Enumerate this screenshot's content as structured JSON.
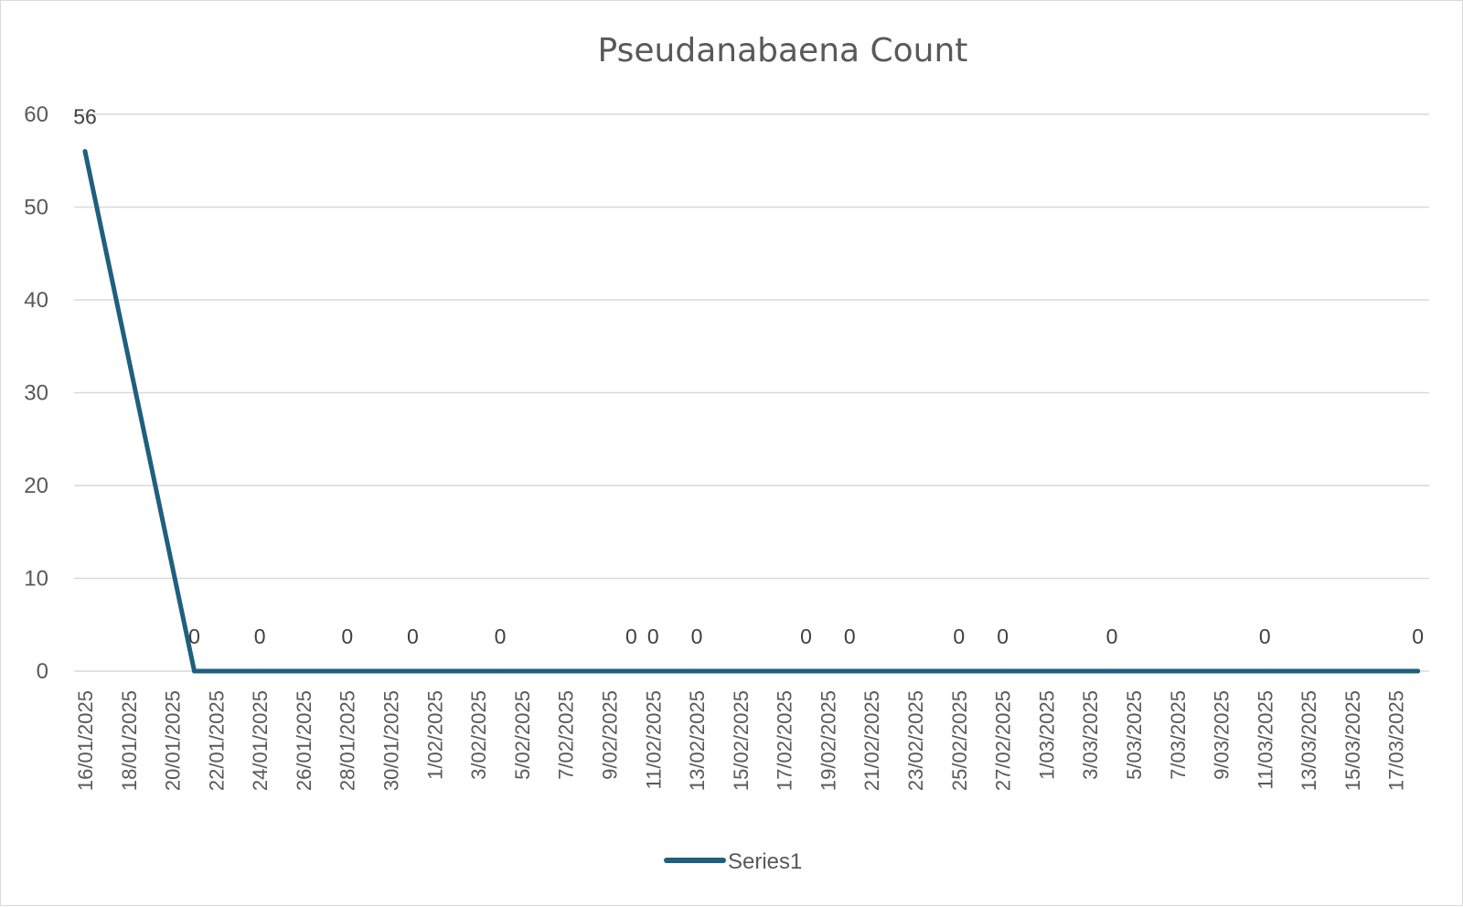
{
  "chart_data": {
    "type": "line",
    "title": "Pseudanabaena Count",
    "xlabel": "",
    "ylabel": "",
    "ylim": [
      0,
      60
    ],
    "yticks": [
      0,
      10,
      20,
      30,
      40,
      50,
      60
    ],
    "x_axis": {
      "type": "date",
      "range": [
        "16/01/2025",
        "18/03/2025"
      ],
      "tick_labels": [
        "16/01/2025",
        "18/01/2025",
        "20/01/2025",
        "22/01/2025",
        "24/01/2025",
        "26/01/2025",
        "28/01/2025",
        "30/01/2025",
        "1/02/2025",
        "3/02/2025",
        "5/02/2025",
        "7/02/2025",
        "9/02/2025",
        "11/02/2025",
        "13/02/2025",
        "15/02/2025",
        "17/02/2025",
        "19/02/2025",
        "21/02/2025",
        "23/02/2025",
        "25/02/2025",
        "27/02/2025",
        "1/03/2025",
        "3/03/2025",
        "5/03/2025",
        "7/03/2025",
        "9/03/2025",
        "11/03/2025",
        "13/03/2025",
        "15/03/2025",
        "17/03/2025"
      ]
    },
    "grid": true,
    "legend": "bottom",
    "colors": {
      "line": "#1f5f7f",
      "grid": "#d9d9d9",
      "text": "#595959"
    },
    "series": [
      {
        "name": "Series1",
        "x": [
          "16/01/2025",
          "21/01/2025",
          "24/01/2025",
          "28/01/2025",
          "31/01/2025",
          "4/02/2025",
          "10/02/2025",
          "11/02/2025",
          "13/02/2025",
          "18/02/2025",
          "20/02/2025",
          "25/02/2025",
          "27/02/2025",
          "4/03/2025",
          "11/03/2025",
          "18/03/2025"
        ],
        "values": [
          56,
          0,
          0,
          0,
          0,
          0,
          0,
          0,
          0,
          0,
          0,
          0,
          0,
          0,
          0,
          0
        ]
      }
    ]
  }
}
